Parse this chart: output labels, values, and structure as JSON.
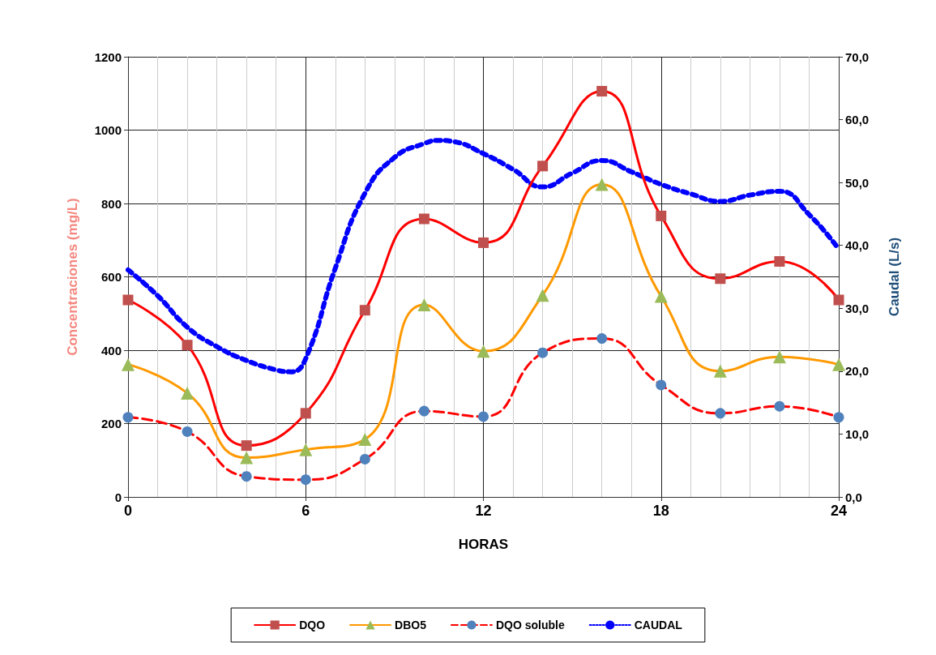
{
  "chart_data": {
    "type": "line",
    "xlabel": "HORAS",
    "ylabel": "Concentraciones (mg/L)",
    "y2label": "Caudal (L/s)",
    "xlim": [
      0,
      24
    ],
    "xticks": [
      0,
      6,
      12,
      18,
      24
    ],
    "ylim": [
      0,
      1200
    ],
    "yticks": [
      0,
      200,
      400,
      600,
      800,
      1000,
      1200
    ],
    "y2lim": [
      0,
      70
    ],
    "y2ticks": [
      {
        "value": 0,
        "label": "0,0"
      },
      {
        "value": 10,
        "label": "10,0"
      },
      {
        "value": 20,
        "label": "20,0"
      },
      {
        "value": 30,
        "label": "30,0"
      },
      {
        "value": 40,
        "label": "40,0"
      },
      {
        "value": 50,
        "label": "50,0"
      },
      {
        "value": 60,
        "label": "60,0"
      },
      {
        "value": 70,
        "label": "70,0"
      }
    ],
    "grid": true,
    "legend": "bottom",
    "series": [
      {
        "name": "DQO",
        "color": "#ff0000",
        "marker": "square",
        "line_style": "solid",
        "x": [
          0,
          2,
          4,
          6,
          8,
          10,
          12,
          14,
          16,
          18,
          20,
          22,
          24
        ],
        "values": [
          537,
          414,
          140,
          228,
          509,
          758,
          693,
          902,
          1106,
          766,
          595,
          642,
          537
        ]
      },
      {
        "name": "DBO5",
        "color": "#ff9900",
        "marker": "triangle",
        "line_style": "solid",
        "x": [
          0,
          2,
          4,
          6,
          8,
          10,
          12,
          14,
          16,
          18,
          20,
          22,
          24
        ],
        "values": [
          361,
          283,
          107,
          129,
          157,
          524,
          397,
          550,
          852,
          547,
          343,
          382,
          361
        ]
      },
      {
        "name": "DQO soluble",
        "color": "#ff0000",
        "marker": "circle",
        "line_style": "dashed",
        "x": [
          0,
          2,
          4,
          6,
          8,
          10,
          12,
          14,
          16,
          18,
          20,
          22,
          24
        ],
        "values": [
          217,
          178,
          56,
          47,
          103,
          234,
          219,
          393,
          432,
          305,
          228,
          247,
          217
        ]
      },
      {
        "name": "CAUDAL",
        "color": "#0000ff",
        "marker": "none",
        "line_style": "dotted",
        "axis": "y2",
        "x": [
          0,
          1,
          2,
          3,
          4,
          5,
          5.5,
          6,
          7,
          8,
          9,
          10,
          10.5,
          11,
          12,
          13,
          14,
          15,
          16,
          17,
          18,
          19,
          20,
          21,
          22,
          23,
          24
        ],
        "values": [
          36.1,
          32.0,
          27.0,
          23.9,
          21.7,
          20.2,
          19.9,
          22.0,
          36.4,
          48.3,
          54.0,
          56.2,
          56.7,
          56.5,
          54.6,
          52.1,
          49.3,
          51.5,
          53.5,
          51.7,
          49.7,
          48.2,
          47.0,
          48.0,
          48.6,
          44.9,
          39.4
        ]
      }
    ]
  }
}
